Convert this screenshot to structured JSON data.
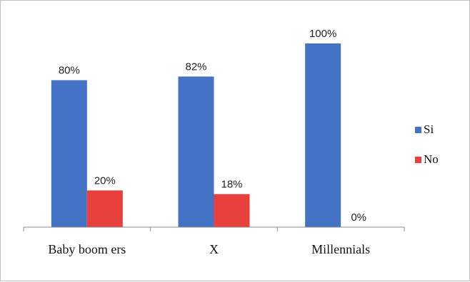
{
  "chart_data": {
    "type": "bar",
    "categories": [
      "Baby boom ers",
      "X",
      "Millennials"
    ],
    "series": [
      {
        "name": "Si",
        "values": [
          80,
          82,
          100
        ],
        "labels": [
          "80%",
          "82%",
          "100%"
        ],
        "color": "#4472C4"
      },
      {
        "name": "No",
        "values": [
          20,
          18,
          0
        ],
        "labels": [
          "20%",
          "18%",
          "0%"
        ],
        "color": "#E8413D"
      }
    ],
    "ylim": [
      0,
      100
    ],
    "grid": false,
    "legend": "right"
  }
}
